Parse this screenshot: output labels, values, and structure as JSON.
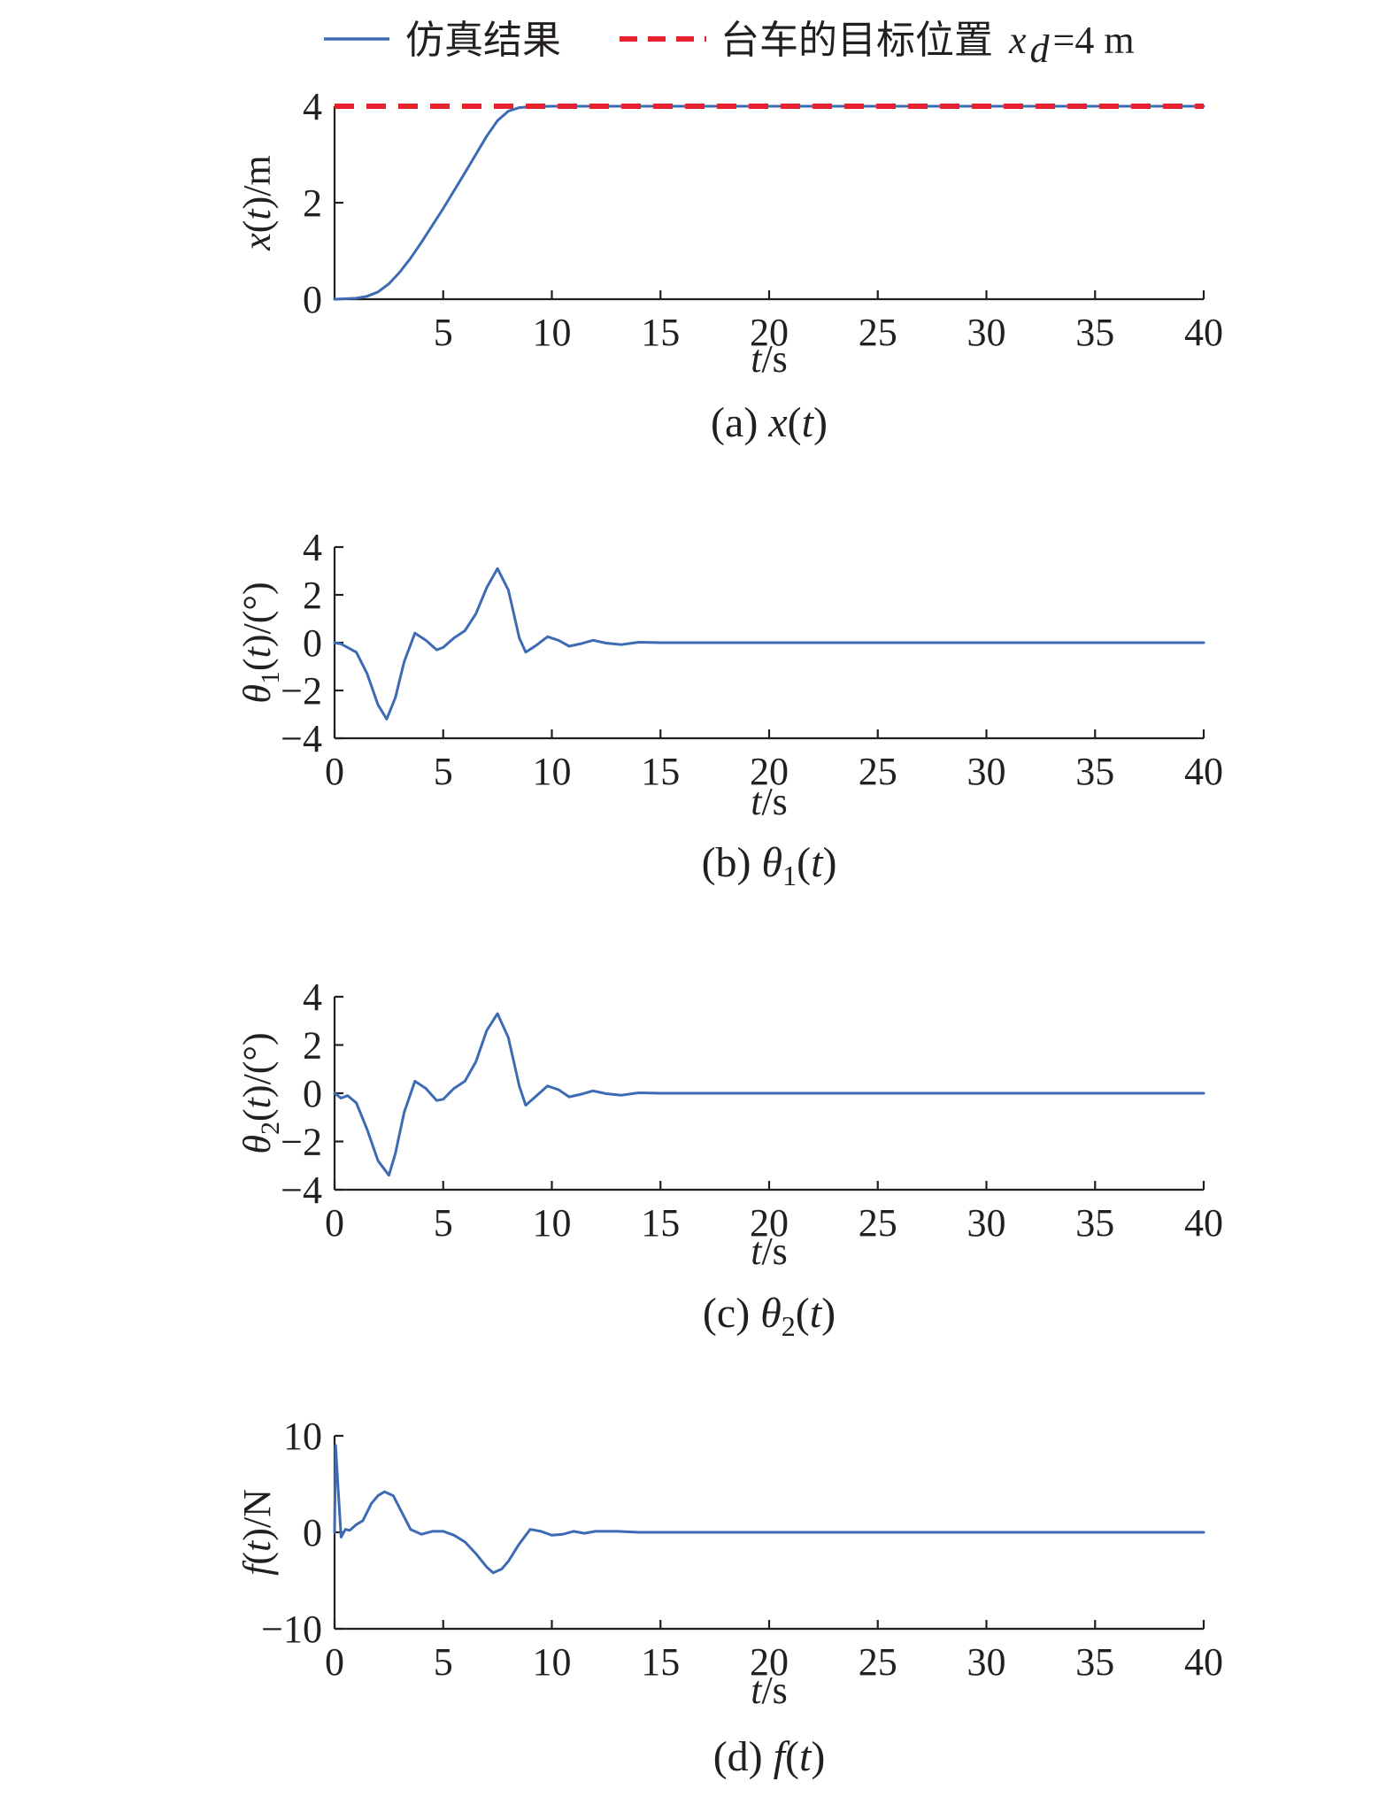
{
  "legend": {
    "sim_label": "仿真结果",
    "target_label": "台车的目标位置",
    "target_symbol": "x",
    "target_sub": "d",
    "target_value": "=4 m"
  },
  "colors": {
    "simulation": "#3d6bb3",
    "target": "#e8222d",
    "axis": "#231f20"
  },
  "chart_data": [
    {
      "type": "line",
      "caption": {
        "prefix": "(a) ",
        "sym": "x",
        "sub": "",
        "args": "(t)"
      },
      "ylabel": {
        "sym": "x",
        "sub": "",
        "tail": "(t)/m"
      },
      "xlabel": "t/s",
      "xlim": [
        0,
        40
      ],
      "ylim": [
        0,
        4
      ],
      "xticks": [
        5,
        10,
        15,
        20,
        25,
        30,
        35,
        40
      ],
      "yticks": [
        0,
        2,
        4
      ],
      "series": [
        {
          "name": "仿真结果",
          "style": "solid",
          "x": [
            0,
            1,
            1.5,
            2,
            2.5,
            3,
            3.5,
            4,
            5,
            6,
            6.5,
            7,
            7.5,
            8,
            8.5,
            9,
            10,
            15,
            20,
            30,
            40
          ],
          "y": [
            0,
            0.02,
            0.06,
            0.15,
            0.32,
            0.56,
            0.85,
            1.18,
            1.88,
            2.62,
            3.0,
            3.38,
            3.7,
            3.9,
            3.97,
            3.99,
            4.0,
            4.0,
            4.0,
            4.0,
            4.0
          ]
        },
        {
          "name": "台车的目标位置",
          "style": "dashed",
          "x": [
            0,
            40
          ],
          "y": [
            4,
            4
          ]
        }
      ]
    },
    {
      "type": "line",
      "caption": {
        "prefix": "(b) ",
        "sym": "θ",
        "sub": "1",
        "args": "(t)"
      },
      "ylabel": {
        "sym": "θ",
        "sub": "1",
        "tail": "(t)/(°)"
      },
      "xlabel": "t/s",
      "xlim": [
        0,
        40
      ],
      "ylim": [
        -4,
        4
      ],
      "xticks": [
        0,
        5,
        10,
        15,
        20,
        25,
        30,
        35,
        40
      ],
      "yticks": [
        -4,
        -2,
        0,
        2,
        4
      ],
      "series": [
        {
          "name": "仿真结果",
          "style": "solid",
          "x": [
            0,
            0.3,
            0.6,
            1.0,
            1.5,
            2.0,
            2.4,
            2.8,
            3.2,
            3.7,
            4.2,
            4.7,
            5.0,
            5.5,
            6.0,
            6.5,
            7.0,
            7.5,
            8.0,
            8.5,
            8.8,
            9.3,
            9.8,
            10.3,
            10.8,
            11.3,
            11.9,
            12.5,
            13.2,
            14.0,
            15.0,
            20.0,
            30.0,
            40.0
          ],
          "y": [
            0,
            -0.05,
            -0.2,
            -0.4,
            -1.3,
            -2.6,
            -3.2,
            -2.3,
            -0.8,
            0.4,
            0.1,
            -0.3,
            -0.2,
            0.2,
            0.5,
            1.2,
            2.3,
            3.1,
            2.2,
            0.2,
            -0.4,
            -0.1,
            0.25,
            0.1,
            -0.15,
            -0.05,
            0.1,
            -0.02,
            -0.08,
            0.02,
            0,
            0,
            0,
            0
          ]
        }
      ]
    },
    {
      "type": "line",
      "caption": {
        "prefix": "(c) ",
        "sym": "θ",
        "sub": "2",
        "args": "(t)"
      },
      "ylabel": {
        "sym": "θ",
        "sub": "2",
        "tail": "(t)/(°)"
      },
      "xlabel": "t/s",
      "xlim": [
        0,
        40
      ],
      "ylim": [
        -4,
        4
      ],
      "xticks": [
        0,
        5,
        10,
        15,
        20,
        25,
        30,
        35,
        40
      ],
      "yticks": [
        -4,
        -2,
        0,
        2,
        4
      ],
      "series": [
        {
          "name": "仿真结果",
          "style": "solid",
          "x": [
            0,
            0.3,
            0.6,
            1.0,
            1.5,
            2.0,
            2.5,
            2.8,
            3.2,
            3.7,
            4.2,
            4.7,
            5.0,
            5.5,
            6.0,
            6.5,
            7.0,
            7.5,
            8.0,
            8.5,
            8.8,
            9.3,
            9.8,
            10.3,
            10.8,
            11.3,
            11.9,
            12.5,
            13.2,
            14.0,
            15.0,
            20.0,
            30.0,
            40.0
          ],
          "y": [
            0,
            -0.2,
            -0.1,
            -0.4,
            -1.5,
            -2.8,
            -3.4,
            -2.5,
            -0.8,
            0.5,
            0.2,
            -0.3,
            -0.25,
            0.2,
            0.5,
            1.3,
            2.6,
            3.3,
            2.3,
            0.3,
            -0.5,
            -0.1,
            0.3,
            0.15,
            -0.15,
            -0.05,
            0.1,
            -0.02,
            -0.08,
            0.02,
            0,
            0,
            0,
            0
          ]
        }
      ]
    },
    {
      "type": "line",
      "caption": {
        "prefix": "(d) ",
        "sym": "f",
        "sub": "",
        "args": "(t)"
      },
      "ylabel": {
        "sym": "f",
        "sub": "",
        "tail": "(t)/N"
      },
      "xlabel": "t/s",
      "xlim": [
        0,
        40
      ],
      "ylim": [
        -10,
        10
      ],
      "xticks": [
        0,
        5,
        10,
        15,
        20,
        25,
        30,
        35,
        40
      ],
      "yticks": [
        -10,
        0,
        10
      ],
      "series": [
        {
          "name": "仿真结果",
          "style": "solid",
          "x": [
            0,
            0.05,
            0.15,
            0.3,
            0.5,
            0.7,
            1.0,
            1.3,
            1.7,
            2.0,
            2.3,
            2.7,
            3.0,
            3.5,
            4.0,
            4.5,
            5.0,
            5.5,
            6.0,
            6.5,
            7.0,
            7.3,
            7.7,
            8.0,
            8.5,
            9.0,
            9.5,
            10.0,
            10.5,
            11.0,
            11.5,
            12.0,
            13.0,
            14.0,
            15.0,
            20.0,
            30.0,
            40.0
          ],
          "y": [
            0,
            9.0,
            5.0,
            -0.5,
            0.3,
            0.2,
            0.8,
            1.2,
            3.0,
            3.8,
            4.2,
            3.8,
            2.5,
            0.3,
            -0.2,
            0.1,
            0.1,
            -0.3,
            -1.0,
            -2.2,
            -3.6,
            -4.2,
            -3.8,
            -3.0,
            -1.2,
            0.3,
            0.1,
            -0.3,
            -0.2,
            0.1,
            -0.1,
            0.1,
            0.1,
            0,
            0,
            0,
            0,
            0
          ]
        }
      ]
    }
  ]
}
